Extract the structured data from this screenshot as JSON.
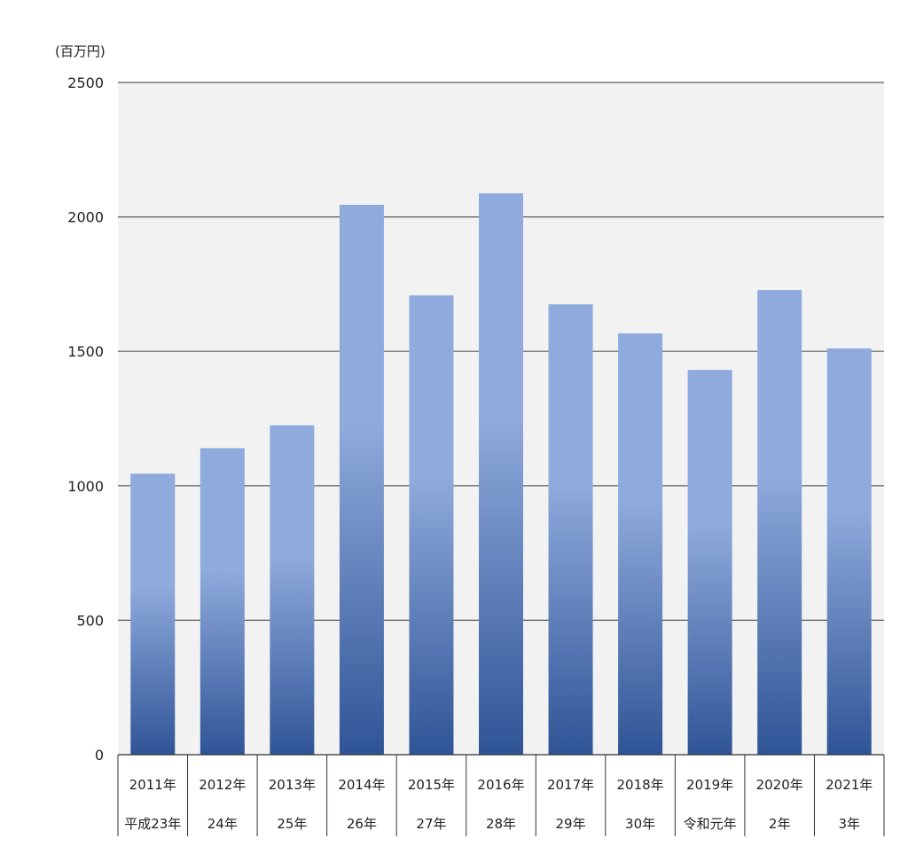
{
  "chart_data": {
    "type": "bar",
    "title": "",
    "unit_label": "(百万円)",
    "xlabel": "",
    "ylabel": "(百万円)",
    "ylim": [
      0,
      2500
    ],
    "yticks": [
      0,
      500,
      1000,
      1500,
      2000,
      2500
    ],
    "grid": true,
    "categories": [
      "2011年",
      "2012年",
      "2013年",
      "2014年",
      "2015年",
      "2016年",
      "2017年",
      "2018年",
      "2019年",
      "2020年",
      "2021年"
    ],
    "categories_era": [
      "平成23年",
      "24年",
      "25年",
      "26年",
      "27年",
      "28年",
      "29年",
      "30年",
      "令和元年",
      "2年",
      "3年"
    ],
    "values": [
      1045,
      1140,
      1225,
      2045,
      1708,
      2088,
      1675,
      1567,
      1431,
      1728,
      1511
    ],
    "colors": {
      "bar_top": "#8faadc",
      "bar_bottom": "#2f5496",
      "plot_bg": "#f2f2f2",
      "grid": "#595959"
    }
  }
}
